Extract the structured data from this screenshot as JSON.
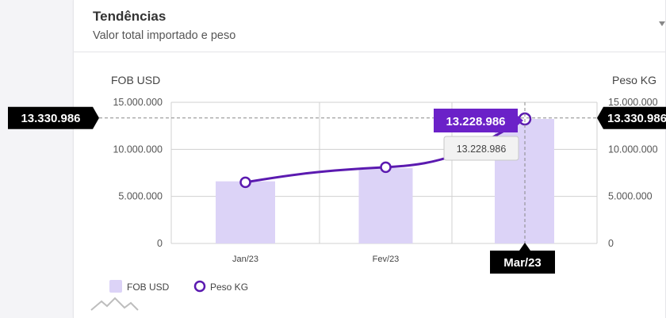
{
  "card": {
    "title": "Tendências",
    "subtitle": "Valor total importado e peso"
  },
  "icons": {
    "card_menu": "chevron-down-icon",
    "footer_logo": "mountain-logo-icon"
  },
  "colors": {
    "bar": "#dcd3f7",
    "line": "#5b1ab0",
    "tag": "#000000",
    "tooltip_value": "#6b21c8"
  },
  "chart_data": {
    "type": "bar",
    "categories": [
      "Jan/23",
      "Fev/23",
      "Mar/23"
    ],
    "ylabel_left": "FOB USD",
    "ylabel_right": "Peso KG",
    "ylim_left": [
      0,
      15000000
    ],
    "ylim_right": [
      0,
      15000000
    ],
    "yticks_left": [
      "0",
      "5.000.000",
      "10.000.000",
      "15.000.000"
    ],
    "yticks_right": [
      "0",
      "5.000.000",
      "10.000.000",
      "15.000.000"
    ],
    "grid": true,
    "legend_position": "bottom-left",
    "series": [
      {
        "name": "FOB USD",
        "type": "bar",
        "axis": "left",
        "values": [
          6600000,
          8000000,
          13228986
        ]
      },
      {
        "name": "Peso KG",
        "type": "line",
        "axis": "right",
        "values": [
          6500000,
          8100000,
          13228986
        ]
      }
    ],
    "crosshair": {
      "category": "Mar/23",
      "left_value_label": "13.330.986",
      "right_value_label": "13.330.986",
      "y_value": 13330986,
      "tooltip_value": "13.228.986",
      "tooltip_secondary": "13.228.986"
    }
  }
}
